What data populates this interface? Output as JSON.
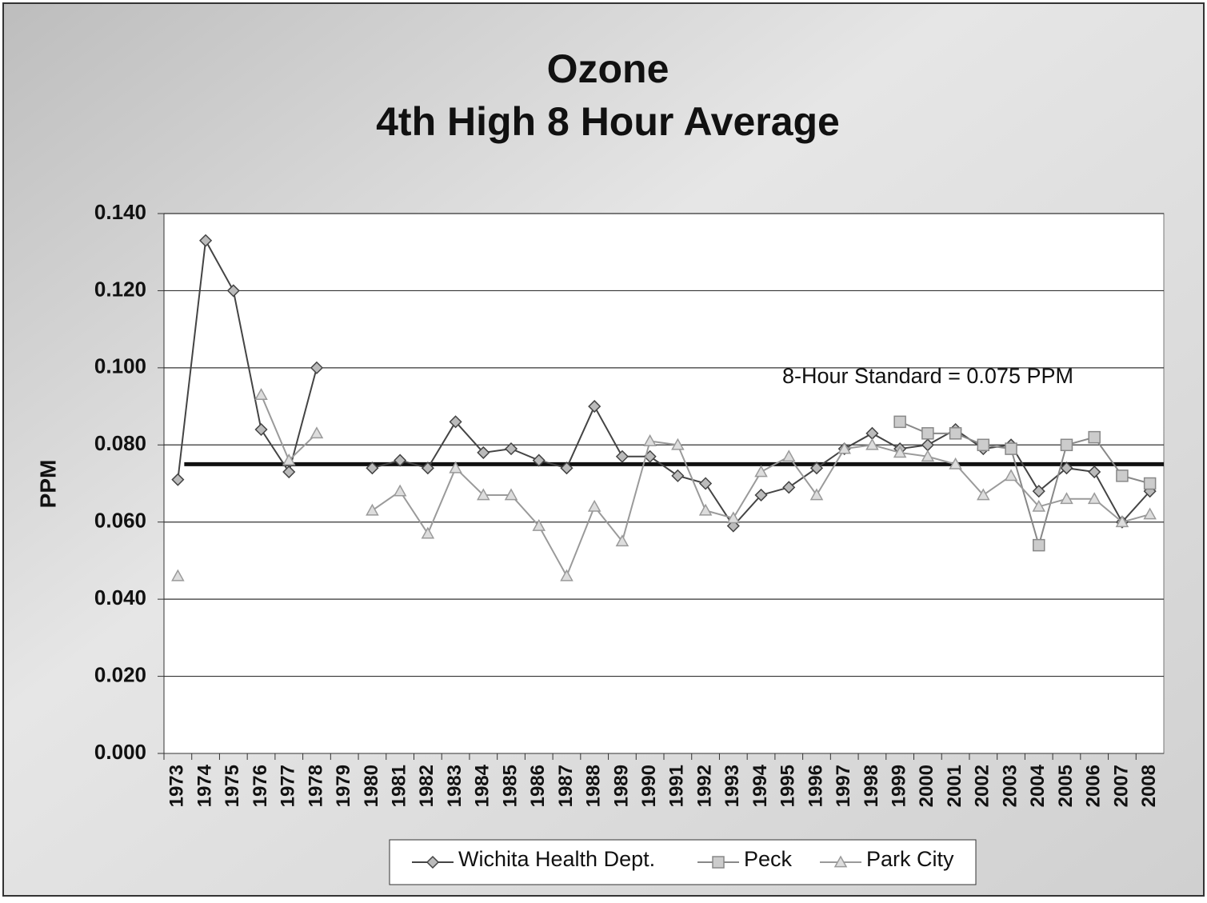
{
  "chart_data": {
    "type": "line",
    "title": "Ozone",
    "subtitle": "4th High 8 Hour Average",
    "y_label": "PPM",
    "categories": [
      "1973",
      "1974",
      "1975",
      "1976",
      "1977",
      "1978",
      "1979",
      "1980",
      "1981",
      "1982",
      "1983",
      "1984",
      "1985",
      "1986",
      "1987",
      "1988",
      "1989",
      "1990",
      "1991",
      "1992",
      "1993",
      "1994",
      "1995",
      "1996",
      "1997",
      "1998",
      "1999",
      "2000",
      "2001",
      "2002",
      "2003",
      "2004",
      "2005",
      "2006",
      "2007",
      "2008"
    ],
    "series": [
      {
        "name": "Wichita Health Dept.",
        "color": "#444444",
        "marker": "diamond",
        "values": [
          0.071,
          0.133,
          0.12,
          0.084,
          0.073,
          0.1,
          null,
          0.074,
          0.076,
          0.074,
          0.086,
          0.078,
          0.079,
          0.076,
          0.074,
          0.09,
          0.077,
          0.077,
          0.072,
          0.07,
          0.059,
          0.067,
          0.069,
          0.074,
          0.079,
          0.083,
          0.079,
          0.08,
          0.084,
          0.079,
          0.08,
          0.068,
          0.074,
          0.073,
          0.06,
          0.068
        ]
      },
      {
        "name": "Peck",
        "color": "#888888",
        "marker": "square",
        "values": [
          null,
          null,
          null,
          null,
          null,
          null,
          null,
          null,
          null,
          null,
          null,
          null,
          null,
          null,
          null,
          null,
          null,
          null,
          null,
          null,
          null,
          null,
          null,
          null,
          null,
          null,
          0.086,
          0.083,
          0.083,
          0.08,
          0.079,
          0.054,
          0.08,
          0.082,
          0.072,
          0.07
        ]
      },
      {
        "name": "Park City",
        "color": "#9a9a9a",
        "marker": "triangle",
        "values": [
          0.046,
          null,
          null,
          0.093,
          0.076,
          0.083,
          null,
          0.063,
          0.068,
          0.057,
          0.074,
          0.067,
          0.067,
          0.059,
          0.046,
          0.064,
          0.055,
          0.081,
          0.08,
          0.063,
          0.061,
          0.073,
          0.077,
          0.067,
          0.079,
          0.08,
          0.078,
          0.077,
          0.075,
          0.067,
          0.072,
          0.064,
          0.066,
          0.066,
          0.06,
          0.062
        ]
      }
    ],
    "reference_line": {
      "value": 0.075,
      "label": "8-Hour Standard = 0.075 PPM",
      "color": "#111111"
    },
    "ylim": [
      0,
      0.14
    ],
    "yticks": [
      {
        "value": 0,
        "label": "0.000"
      },
      {
        "value": 0.02,
        "label": "0.020"
      },
      {
        "value": 0.04,
        "label": "0.040"
      },
      {
        "value": 0.06,
        "label": "0.060"
      },
      {
        "value": 0.08,
        "label": "0.080"
      },
      {
        "value": 0.1,
        "label": "0.100"
      },
      {
        "value": 0.12,
        "label": "0.120"
      },
      {
        "value": 0.14,
        "label": "0.140"
      }
    ],
    "grid": true
  }
}
